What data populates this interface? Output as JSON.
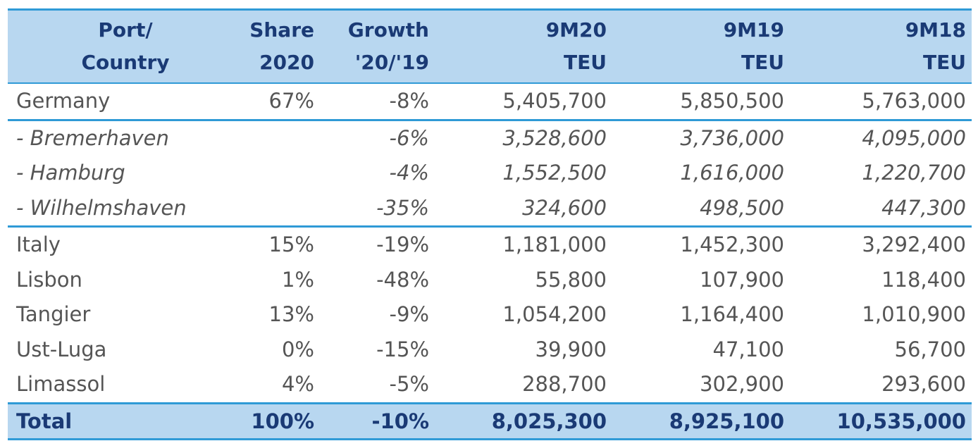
{
  "chart_data": {
    "type": "table",
    "columns": [
      {
        "line1": "Port/",
        "line2": "Country"
      },
      {
        "line1": "Share",
        "line2": "2020"
      },
      {
        "line1": "Growth",
        "line2": "'20/'19"
      },
      {
        "line1": "9M20",
        "line2": "TEU"
      },
      {
        "line1": "9M19",
        "line2": "TEU"
      },
      {
        "line1": "9M18",
        "line2": "TEU"
      }
    ],
    "rows": [
      {
        "name": "Germany",
        "share": "67%",
        "growth": "-8%",
        "teu_9m20": "5,405,700",
        "teu_9m19": "5,850,500",
        "teu_9m18": "5,763,000"
      },
      {
        "name": "- Bremerhaven",
        "share": "",
        "growth": "-6%",
        "teu_9m20": "3,528,600",
        "teu_9m19": "3,736,000",
        "teu_9m18": "4,095,000"
      },
      {
        "name": "- Hamburg",
        "share": "",
        "growth": "-4%",
        "teu_9m20": "1,552,500",
        "teu_9m19": "1,616,000",
        "teu_9m18": "1,220,700"
      },
      {
        "name": "- Wilhelmshaven",
        "share": "",
        "growth": "-35%",
        "teu_9m20": "324,600",
        "teu_9m19": "498,500",
        "teu_9m18": "447,300"
      },
      {
        "name": "Italy",
        "share": "15%",
        "growth": "-19%",
        "teu_9m20": "1,181,000",
        "teu_9m19": "1,452,300",
        "teu_9m18": "3,292,400"
      },
      {
        "name": "Lisbon",
        "share": "1%",
        "growth": "-48%",
        "teu_9m20": "55,800",
        "teu_9m19": "107,900",
        "teu_9m18": "118,400"
      },
      {
        "name": "Tangier",
        "share": "13%",
        "growth": "-9%",
        "teu_9m20": "1,054,200",
        "teu_9m19": "1,164,400",
        "teu_9m18": "1,010,900"
      },
      {
        "name": "Ust-Luga",
        "share": "0%",
        "growth": "-15%",
        "teu_9m20": "39,900",
        "teu_9m19": "47,100",
        "teu_9m18": "56,700"
      },
      {
        "name": "Limassol",
        "share": "4%",
        "growth": "-5%",
        "teu_9m20": "288,700",
        "teu_9m19": "302,900",
        "teu_9m18": "293,600"
      }
    ],
    "total": {
      "name": "Total",
      "share": "100%",
      "growth": "-10%",
      "teu_9m20": "8,025,300",
      "teu_9m19": "8,925,100",
      "teu_9m18": "10,535,000"
    }
  },
  "colors": {
    "header_bg": "#b8d7f0",
    "rule": "#2f9ad6",
    "header_text": "#1a3a75",
    "body_text": "#555555"
  }
}
